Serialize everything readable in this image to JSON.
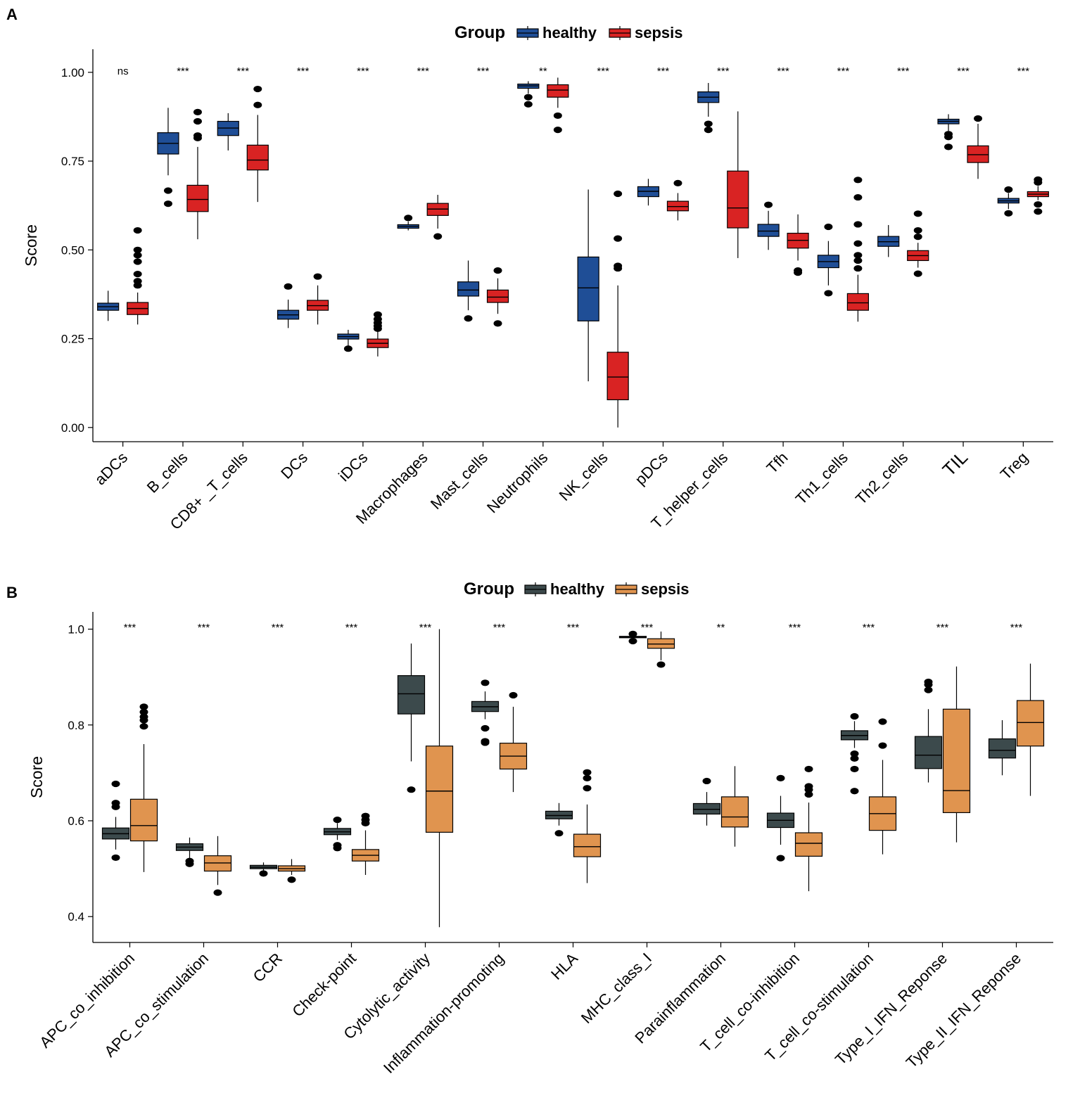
{
  "chart_data": [
    {
      "panel": "A",
      "type": "box",
      "ylabel": "Score",
      "xlabel": "",
      "ylim": [
        -0.04,
        1.065
      ],
      "yticks": [
        "0.00",
        "0.25",
        "0.50",
        "0.75",
        "1.00"
      ],
      "ytick_values": [
        0,
        0.25,
        0.5,
        0.75,
        1.0
      ],
      "legend": {
        "title": "Group",
        "position": "top-center",
        "entries": [
          "healthy",
          "sepsis"
        ]
      },
      "colors": {
        "healthy": "#1f4e96",
        "sepsis": "#d92323"
      },
      "categories": [
        "aDCs",
        "B_cells",
        "CD8+ _T_cells",
        "DCs",
        "iDCs",
        "Macrophages",
        "Mast_cells",
        "Neutrophils",
        "NK_cells",
        "pDCs",
        "T_helper_cells",
        "Tfh",
        "Th1_cells",
        "Th2_cells",
        "TIL",
        "Treg"
      ],
      "significance": [
        "ns",
        "***",
        "***",
        "***",
        "***",
        "***",
        "***",
        "**",
        "***",
        "***",
        "***",
        "***",
        "***",
        "***",
        "***",
        "***"
      ],
      "series": [
        {
          "name": "healthy",
          "boxes": [
            {
              "lw": 0.3,
              "q1": 0.33,
              "med": 0.34,
              "q3": 0.35,
              "uw": 0.385,
              "out": []
            },
            {
              "lw": 0.71,
              "q1": 0.77,
              "med": 0.8,
              "q3": 0.83,
              "uw": 0.9,
              "out": [
                0.667,
                0.63
              ]
            },
            {
              "lw": 0.78,
              "q1": 0.822,
              "med": 0.843,
              "q3": 0.862,
              "uw": 0.885,
              "out": []
            },
            {
              "lw": 0.28,
              "q1": 0.305,
              "med": 0.317,
              "q3": 0.33,
              "uw": 0.36,
              "out": [
                0.397
              ]
            },
            {
              "lw": 0.23,
              "q1": 0.249,
              "med": 0.256,
              "q3": 0.263,
              "uw": 0.275,
              "out": [
                0.222
              ]
            },
            {
              "lw": 0.555,
              "q1": 0.561,
              "med": 0.566,
              "q3": 0.571,
              "uw": 0.58,
              "out": [
                0.59
              ]
            },
            {
              "lw": 0.33,
              "q1": 0.37,
              "med": 0.387,
              "q3": 0.41,
              "uw": 0.47,
              "out": [
                0.307
              ]
            },
            {
              "lw": 0.94,
              "q1": 0.955,
              "med": 0.962,
              "q3": 0.967,
              "uw": 0.975,
              "out": [
                0.93,
                0.91
              ]
            },
            {
              "lw": 0.13,
              "q1": 0.3,
              "med": 0.393,
              "q3": 0.48,
              "uw": 0.67,
              "out": []
            },
            {
              "lw": 0.625,
              "q1": 0.65,
              "med": 0.665,
              "q3": 0.678,
              "uw": 0.7,
              "out": []
            },
            {
              "lw": 0.875,
              "q1": 0.915,
              "med": 0.93,
              "q3": 0.945,
              "uw": 0.97,
              "out": [
                0.855,
                0.838
              ]
            },
            {
              "lw": 0.5,
              "q1": 0.538,
              "med": 0.553,
              "q3": 0.572,
              "uw": 0.61,
              "out": [
                0.627
              ]
            },
            {
              "lw": 0.4,
              "q1": 0.45,
              "med": 0.467,
              "q3": 0.485,
              "uw": 0.525,
              "out": [
                0.565,
                0.378
              ]
            },
            {
              "lw": 0.48,
              "q1": 0.51,
              "med": 0.523,
              "q3": 0.538,
              "uw": 0.57,
              "out": []
            },
            {
              "lw": 0.835,
              "q1": 0.855,
              "med": 0.862,
              "q3": 0.868,
              "uw": 0.882,
              "out": [
                0.826,
                0.818,
                0.79
              ]
            },
            {
              "lw": 0.615,
              "q1": 0.632,
              "med": 0.638,
              "q3": 0.645,
              "uw": 0.66,
              "out": [
                0.67,
                0.603
              ]
            }
          ]
        },
        {
          "name": "sepsis",
          "boxes": [
            {
              "lw": 0.29,
              "q1": 0.318,
              "med": 0.335,
              "q3": 0.352,
              "uw": 0.38,
              "out": [
                0.4,
                0.412,
                0.432,
                0.467,
                0.485,
                0.5,
                0.555
              ]
            },
            {
              "lw": 0.53,
              "q1": 0.608,
              "med": 0.642,
              "q3": 0.682,
              "uw": 0.79,
              "out": [
                0.815,
                0.822,
                0.862,
                0.888
              ]
            },
            {
              "lw": 0.635,
              "q1": 0.725,
              "med": 0.753,
              "q3": 0.795,
              "uw": 0.88,
              "out": [
                0.908,
                0.953
              ]
            },
            {
              "lw": 0.29,
              "q1": 0.33,
              "med": 0.343,
              "q3": 0.358,
              "uw": 0.4,
              "out": [
                0.425
              ]
            },
            {
              "lw": 0.2,
              "q1": 0.225,
              "med": 0.237,
              "q3": 0.249,
              "uw": 0.27,
              "out": [
                0.278,
                0.286,
                0.295,
                0.305,
                0.318
              ]
            },
            {
              "lw": 0.56,
              "q1": 0.597,
              "med": 0.615,
              "q3": 0.631,
              "uw": 0.655,
              "out": [
                0.538
              ]
            },
            {
              "lw": 0.32,
              "q1": 0.352,
              "med": 0.367,
              "q3": 0.387,
              "uw": 0.42,
              "out": [
                0.442,
                0.293
              ]
            },
            {
              "lw": 0.9,
              "q1": 0.93,
              "med": 0.95,
              "q3": 0.965,
              "uw": 0.985,
              "out": [
                0.878,
                0.838
              ]
            },
            {
              "lw": 0.0,
              "q1": 0.078,
              "med": 0.142,
              "q3": 0.212,
              "uw": 0.4,
              "out": [
                0.448,
                0.455,
                0.532,
                0.658
              ]
            },
            {
              "lw": 0.583,
              "q1": 0.61,
              "med": 0.622,
              "q3": 0.637,
              "uw": 0.66,
              "out": [
                0.688
              ]
            },
            {
              "lw": 0.477,
              "q1": 0.562,
              "med": 0.618,
              "q3": 0.722,
              "uw": 0.89,
              "out": []
            },
            {
              "lw": 0.47,
              "q1": 0.505,
              "med": 0.527,
              "q3": 0.547,
              "uw": 0.6,
              "out": [
                0.442,
                0.436
              ]
            },
            {
              "lw": 0.298,
              "q1": 0.33,
              "med": 0.351,
              "q3": 0.377,
              "uw": 0.43,
              "out": [
                0.448,
                0.47,
                0.485,
                0.518,
                0.572,
                0.648,
                0.697
              ]
            },
            {
              "lw": 0.45,
              "q1": 0.47,
              "med": 0.484,
              "q3": 0.498,
              "uw": 0.52,
              "out": [
                0.537,
                0.555,
                0.602,
                0.433
              ]
            },
            {
              "lw": 0.7,
              "q1": 0.746,
              "med": 0.768,
              "q3": 0.793,
              "uw": 0.855,
              "out": [
                0.87
              ]
            },
            {
              "lw": 0.64,
              "q1": 0.65,
              "med": 0.657,
              "q3": 0.664,
              "uw": 0.68,
              "out": [
                0.69,
                0.698,
                0.628,
                0.608
              ]
            }
          ]
        }
      ]
    },
    {
      "panel": "B",
      "type": "box",
      "ylabel": "Score",
      "xlabel": "",
      "ylim": [
        0.346,
        1.036
      ],
      "yticks": [
        "0.4",
        "0.6",
        "0.8",
        "1.0"
      ],
      "ytick_values": [
        0.4,
        0.6,
        0.8,
        1.0
      ],
      "legend": {
        "title": "Group",
        "position": "top-center",
        "entries": [
          "healthy",
          "sepsis"
        ]
      },
      "colors": {
        "healthy": "#3c4a4c",
        "sepsis": "#e0944f"
      },
      "categories": [
        "APC_co_inhibition",
        "APC_co_stimulation",
        "CCR",
        "Check-point",
        "Cytolytic_activity",
        "Inflammation-promoting",
        "HLA",
        "MHC_class_I",
        "Parainflammation",
        "T_cell_co-inhibition",
        "T_cell_co-stimulation",
        "Type_I_IFN_Reponse",
        "Type_II_IFN_Reponse"
      ],
      "significance": [
        "***",
        "***",
        "***",
        "***",
        "***",
        "***",
        "***",
        "***",
        "**",
        "***",
        "***",
        "***",
        "***"
      ],
      "series": [
        {
          "name": "healthy",
          "boxes": [
            {
              "lw": 0.54,
              "q1": 0.562,
              "med": 0.573,
              "q3": 0.585,
              "uw": 0.608,
              "out": [
                0.523,
                0.629,
                0.637,
                0.677
              ]
            },
            {
              "lw": 0.522,
              "q1": 0.538,
              "med": 0.545,
              "q3": 0.552,
              "uw": 0.565,
              "out": [
                0.516,
                0.51
              ]
            },
            {
              "lw": 0.496,
              "q1": 0.5,
              "med": 0.503,
              "q3": 0.507,
              "uw": 0.513,
              "out": [
                0.49
              ]
            },
            {
              "lw": 0.56,
              "q1": 0.571,
              "med": 0.577,
              "q3": 0.584,
              "uw": 0.595,
              "out": [
                0.602,
                0.549,
                0.543
              ]
            },
            {
              "lw": 0.724,
              "q1": 0.823,
              "med": 0.865,
              "q3": 0.903,
              "uw": 0.97,
              "out": [
                0.665
              ]
            },
            {
              "lw": 0.812,
              "q1": 0.828,
              "med": 0.838,
              "q3": 0.849,
              "uw": 0.87,
              "out": [
                0.888,
                0.793,
                0.766,
                0.763
              ]
            },
            {
              "lw": 0.59,
              "q1": 0.604,
              "med": 0.611,
              "q3": 0.62,
              "uw": 0.637,
              "out": [
                0.574
              ]
            },
            {
              "lw": 0.98,
              "q1": 0.982,
              "med": 0.983,
              "q3": 0.985,
              "uw": 0.987,
              "out": [
                0.975,
                0.99
              ]
            },
            {
              "lw": 0.59,
              "q1": 0.614,
              "med": 0.624,
              "q3": 0.636,
              "uw": 0.66,
              "out": [
                0.683
              ]
            },
            {
              "lw": 0.55,
              "q1": 0.586,
              "med": 0.601,
              "q3": 0.616,
              "uw": 0.652,
              "out": [
                0.689,
                0.522
              ]
            },
            {
              "lw": 0.752,
              "q1": 0.769,
              "med": 0.778,
              "q3": 0.788,
              "uw": 0.808,
              "out": [
                0.818,
                0.74,
                0.73,
                0.708,
                0.662
              ]
            },
            {
              "lw": 0.68,
              "q1": 0.709,
              "med": 0.737,
              "q3": 0.776,
              "uw": 0.833,
              "out": [
                0.873,
                0.884,
                0.89
              ]
            },
            {
              "lw": 0.695,
              "q1": 0.731,
              "med": 0.747,
              "q3": 0.771,
              "uw": 0.81,
              "out": []
            }
          ]
        },
        {
          "name": "sepsis",
          "boxes": [
            {
              "lw": 0.493,
              "q1": 0.558,
              "med": 0.59,
              "q3": 0.645,
              "uw": 0.76,
              "out": [
                0.797,
                0.81,
                0.817,
                0.827,
                0.838
              ]
            },
            {
              "lw": 0.466,
              "q1": 0.495,
              "med": 0.512,
              "q3": 0.527,
              "uw": 0.568,
              "out": [
                0.45
              ]
            },
            {
              "lw": 0.487,
              "q1": 0.495,
              "med": 0.5,
              "q3": 0.506,
              "uw": 0.52,
              "out": [
                0.477
              ]
            },
            {
              "lw": 0.487,
              "q1": 0.516,
              "med": 0.528,
              "q3": 0.54,
              "uw": 0.58,
              "out": [
                0.595,
                0.602,
                0.61
              ]
            },
            {
              "lw": 0.378,
              "q1": 0.576,
              "med": 0.662,
              "q3": 0.756,
              "uw": 1.0,
              "out": []
            },
            {
              "lw": 0.66,
              "q1": 0.708,
              "med": 0.735,
              "q3": 0.762,
              "uw": 0.838,
              "out": [
                0.862
              ]
            },
            {
              "lw": 0.47,
              "q1": 0.525,
              "med": 0.546,
              "q3": 0.572,
              "uw": 0.634,
              "out": [
                0.668,
                0.689,
                0.701
              ]
            },
            {
              "lw": 0.935,
              "q1": 0.96,
              "med": 0.969,
              "q3": 0.98,
              "uw": 0.995,
              "out": [
                0.926
              ]
            },
            {
              "lw": 0.546,
              "q1": 0.587,
              "med": 0.608,
              "q3": 0.65,
              "uw": 0.714,
              "out": []
            },
            {
              "lw": 0.453,
              "q1": 0.526,
              "med": 0.553,
              "q3": 0.575,
              "uw": 0.638,
              "out": [
                0.655,
                0.665,
                0.672,
                0.708
              ]
            },
            {
              "lw": 0.53,
              "q1": 0.58,
              "med": 0.615,
              "q3": 0.65,
              "uw": 0.727,
              "out": [
                0.757,
                0.807
              ]
            },
            {
              "lw": 0.555,
              "q1": 0.617,
              "med": 0.663,
              "q3": 0.833,
              "uw": 0.922,
              "out": []
            },
            {
              "lw": 0.652,
              "q1": 0.756,
              "med": 0.805,
              "q3": 0.851,
              "uw": 0.928,
              "out": []
            }
          ]
        }
      ]
    }
  ],
  "panels": {
    "a_label": "A",
    "b_label": "B"
  }
}
